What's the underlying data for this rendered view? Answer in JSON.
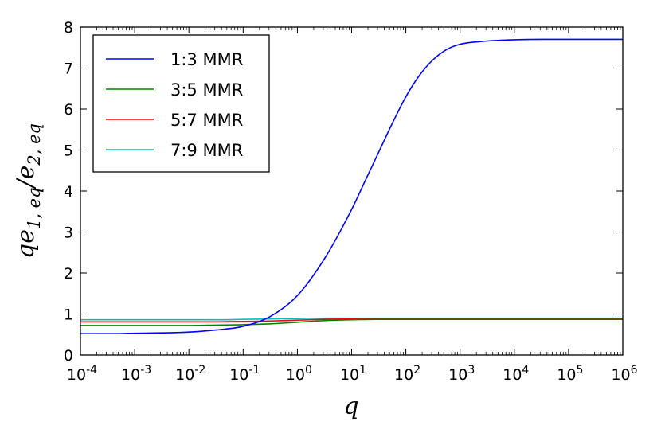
{
  "chart_data": {
    "type": "line",
    "title": "",
    "xlabel": "q",
    "ylabel": "qe1,eq/e2,eq",
    "ylabel_parts": {
      "lead": "qe",
      "sub1": "1, eq",
      "slash": "/e",
      "sub2": "2, eq"
    },
    "xscale": "log",
    "xlim_log10": [
      -4,
      6
    ],
    "ylim": [
      0,
      8
    ],
    "grid": false,
    "legend": "top-left",
    "x_tick_labels": [
      {
        "base": "10",
        "exp": "-4"
      },
      {
        "base": "10",
        "exp": "-3"
      },
      {
        "base": "10",
        "exp": "-2"
      },
      {
        "base": "10",
        "exp": "-1"
      },
      {
        "base": "10",
        "exp": "0"
      },
      {
        "base": "10",
        "exp": "1"
      },
      {
        "base": "10",
        "exp": "2"
      },
      {
        "base": "10",
        "exp": "3"
      },
      {
        "base": "10",
        "exp": "4"
      },
      {
        "base": "10",
        "exp": "5"
      },
      {
        "base": "10",
        "exp": "6"
      }
    ],
    "y_ticks": [
      0,
      1,
      2,
      3,
      4,
      5,
      6,
      7,
      8
    ],
    "series": [
      {
        "name": "1:3 MMR",
        "color": "#0000ff",
        "log10_x": [
          -4,
          -3.5,
          -3,
          -2.5,
          -2,
          -1.5,
          -1,
          -0.5,
          0,
          0.5,
          1,
          1.25,
          1.5,
          1.75,
          2,
          2.25,
          2.5,
          2.75,
          3,
          3.5,
          4,
          4.5,
          5,
          5.5,
          6
        ],
        "y": [
          0.52,
          0.52,
          0.53,
          0.54,
          0.56,
          0.61,
          0.7,
          0.94,
          1.45,
          2.35,
          3.55,
          4.25,
          4.95,
          5.65,
          6.3,
          6.82,
          7.2,
          7.45,
          7.58,
          7.66,
          7.69,
          7.7,
          7.7,
          7.7,
          7.7
        ]
      },
      {
        "name": "3:5 MMR",
        "color": "#008000",
        "log10_x": [
          -4,
          -3,
          -2,
          -1.5,
          -1,
          -0.5,
          0,
          0.5,
          1,
          1.5,
          2,
          3,
          4,
          5,
          6
        ],
        "y": [
          0.72,
          0.72,
          0.72,
          0.73,
          0.74,
          0.76,
          0.8,
          0.84,
          0.86,
          0.87,
          0.87,
          0.87,
          0.87,
          0.87,
          0.87
        ]
      },
      {
        "name": "5:7 MMR",
        "color": "#ff0000",
        "log10_x": [
          -4,
          -3,
          -2,
          -1.5,
          -1,
          -0.5,
          0,
          0.5,
          1,
          1.5,
          2,
          3,
          4,
          5,
          6
        ],
        "y": [
          0.81,
          0.81,
          0.81,
          0.81,
          0.82,
          0.83,
          0.85,
          0.87,
          0.88,
          0.88,
          0.88,
          0.88,
          0.88,
          0.88,
          0.88
        ]
      },
      {
        "name": "7:9 MMR",
        "color": "#00bfbf",
        "log10_x": [
          -4,
          -3,
          -2,
          -1.5,
          -1,
          -0.5,
          0,
          0.5,
          1,
          1.5,
          2,
          3,
          4,
          5,
          6
        ],
        "y": [
          0.86,
          0.86,
          0.86,
          0.86,
          0.87,
          0.88,
          0.89,
          0.9,
          0.9,
          0.9,
          0.9,
          0.9,
          0.9,
          0.9,
          0.9
        ]
      }
    ]
  }
}
